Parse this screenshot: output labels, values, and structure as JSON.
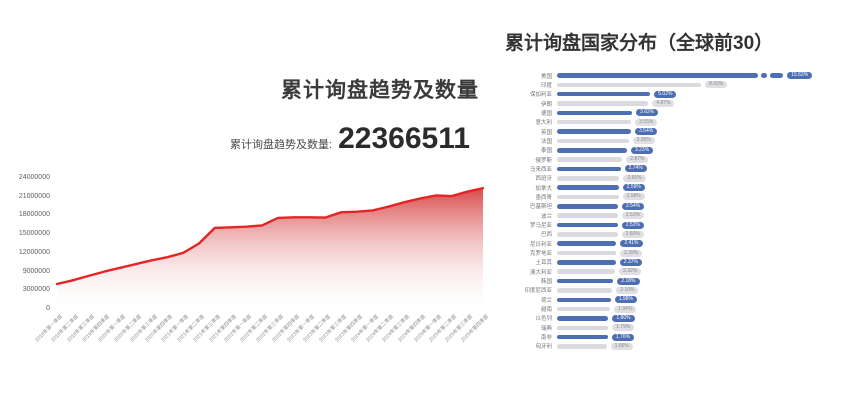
{
  "accent_colors": {
    "line_red": "#e42525",
    "area_top": "#d64040",
    "area_bottom": "#ffffff",
    "bar_blue": "#4e6eb4",
    "bar_gray": "#dadade"
  },
  "chart_data": [
    {
      "type": "area",
      "title": "累计询盘趋势及数量",
      "stat_label": "累计询盘趋势及数量:",
      "stat_value": "22366511",
      "grid": false,
      "legend": "none",
      "ylim": [
        0,
        24000000
      ],
      "ytick_labels": [
        "24000000",
        "21000000",
        "18000000",
        "15000000",
        "12000000",
        "9000000",
        "3000000",
        "0"
      ],
      "ytick_values": [
        24000000,
        21000000,
        18000000,
        15000000,
        12000000,
        9000000,
        3000000,
        0
      ],
      "x": [
        "2019年第一季度",
        "2019年第二季度",
        "2019年第三季度",
        "2019年第四季度",
        "2020年第一季度",
        "2020年第二季度",
        "2020年第三季度",
        "2020年第四季度",
        "2021年第一季度",
        "2021年第二季度",
        "2021年第三季度",
        "2021年第四季度",
        "2022年第一季度",
        "2022年第二季度",
        "2022年第三季度",
        "2022年第四季度",
        "2023年第一季度",
        "2023年第二季度",
        "2023年第三季度",
        "2023年第四季度",
        "2024年第一季度",
        "2024年第二季度",
        "2024年第三季度",
        "2024年第四季度",
        "2025年第一季度",
        "2025年第二季度",
        "2025年第三季度",
        "2025年第四季度"
      ],
      "values": [
        5000000,
        6200000,
        7600000,
        9000000,
        9600000,
        10200000,
        10800000,
        11300000,
        12000000,
        13500000,
        16000000,
        16100000,
        16200000,
        16400000,
        17600000,
        17700000,
        17700000,
        17650000,
        18500000,
        18600000,
        18800000,
        19400000,
        20100000,
        20700000,
        21200000,
        21100000,
        21800000,
        22366511
      ]
    },
    {
      "type": "bar",
      "orientation": "horizontal",
      "title": "累计询盘国家分布（全球前30）",
      "unit": "%",
      "first_bar_truncated": true,
      "categories": [
        "美国",
        "印度",
        "保加利亚",
        "伊朗",
        "德国",
        "意大利",
        "英国",
        "法国",
        "泰国",
        "俄罗斯",
        "马来西亚",
        "西班牙",
        "加拿大",
        "墨西哥",
        "巴基斯坦",
        "波兰",
        "罗马尼亚",
        "巴西",
        "尼日利亚",
        "克罗地亚",
        "土耳其",
        "澳大利亚",
        "韩国",
        "印度尼西亚",
        "荷兰",
        "越南",
        "以色列",
        "瑞典",
        "南非",
        "匈牙利"
      ],
      "values": [
        15.63,
        8.93,
        5.02,
        4.87,
        3.62,
        3.55,
        3.54,
        3.35,
        3.23,
        2.87,
        2.74,
        2.65,
        2.59,
        2.58,
        2.54,
        2.53,
        2.52,
        2.5,
        2.41,
        2.39,
        2.37,
        2.32,
        2.18,
        2.1,
        1.98,
        1.94,
        1.8,
        1.79,
        1.76,
        1.66
      ]
    }
  ]
}
